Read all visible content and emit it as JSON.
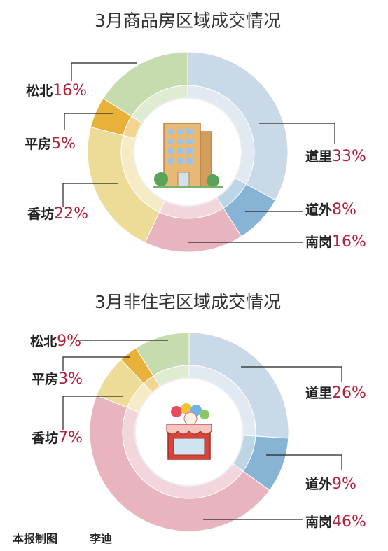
{
  "chart_data": [
    {
      "type": "pie",
      "title": "3月商品房区域成交情况",
      "categories": [
        "道里",
        "道外",
        "南岗",
        "香坊",
        "平房",
        "松北"
      ],
      "values": [
        33,
        8,
        16,
        22,
        5,
        16
      ],
      "value_labels": [
        "33%",
        "8%",
        "16%",
        "22%",
        "5%",
        "16%"
      ],
      "unit": "%",
      "colors": [
        "#c9d9e8",
        "#87b4d4",
        "#e7b4bf",
        "#ecdc98",
        "#e8b23a",
        "#c7dcae"
      ]
    },
    {
      "type": "pie",
      "title": "3月非住宅区域成交情况",
      "categories": [
        "道里",
        "道外",
        "南岗",
        "香坊",
        "平房",
        "松北"
      ],
      "values": [
        26,
        9,
        46,
        7,
        3,
        9
      ],
      "value_labels": [
        "26%",
        "9%",
        "46%",
        "7%",
        "3%",
        "9%"
      ],
      "unit": "%",
      "colors": [
        "#c9d9e8",
        "#87b4d4",
        "#e7b4bf",
        "#ecdc98",
        "#e8b23a",
        "#c7dcae"
      ]
    }
  ],
  "credit": {
    "prefix": "本报制图",
    "author": "李迪"
  },
  "icons": [
    "office-building-icon",
    "shop-icon"
  ]
}
